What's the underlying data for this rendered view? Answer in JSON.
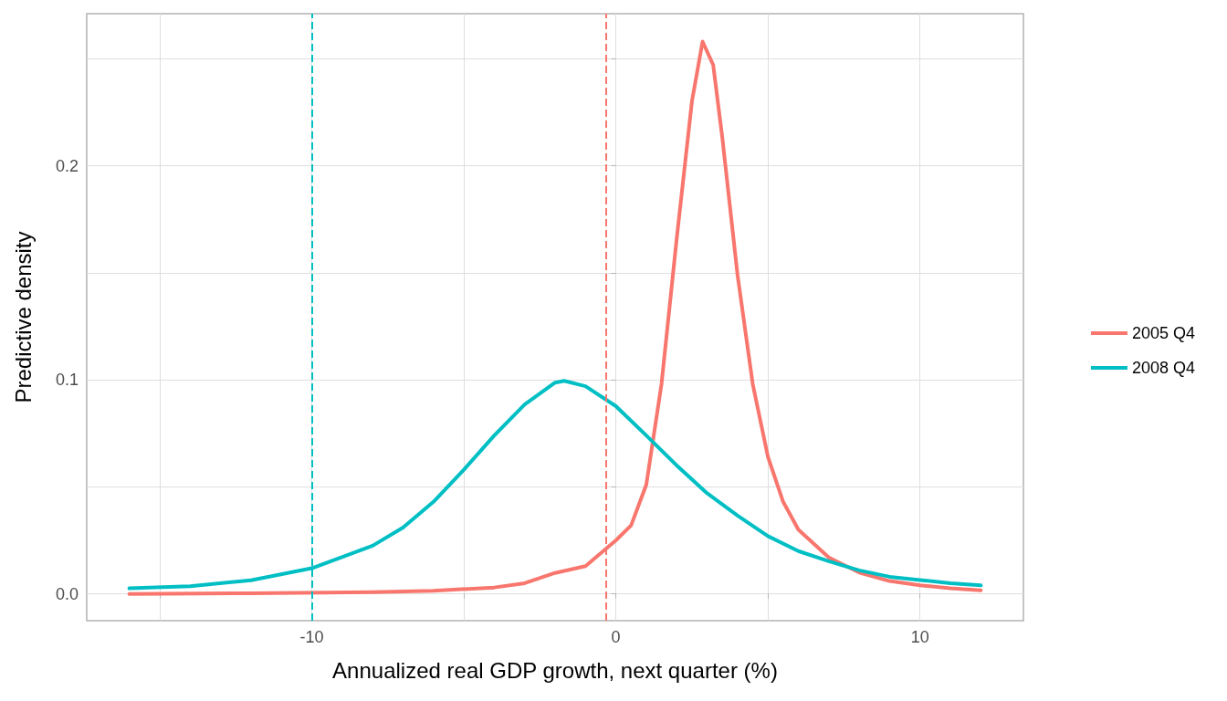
{
  "chart_data": {
    "type": "line",
    "xlabel": "Annualized real GDP growth, next quarter (%)",
    "ylabel": "Predictive density",
    "series": [
      {
        "name": "2005 Q4",
        "color": "#f8766d",
        "x": [
          -16,
          -12,
          -8,
          -6,
          -4,
          -3,
          -2,
          -1,
          0,
          0.5,
          1,
          1.5,
          2,
          2.5,
          2.85,
          3.2,
          3.5,
          4,
          4.5,
          5,
          5.5,
          6,
          7,
          8,
          9,
          10,
          11,
          12
        ],
        "values": [
          0,
          0.0003,
          0.0008,
          0.0015,
          0.003,
          0.005,
          0.0098,
          0.013,
          0.025,
          0.032,
          0.051,
          0.098,
          0.166,
          0.23,
          0.258,
          0.247,
          0.213,
          0.149,
          0.098,
          0.064,
          0.043,
          0.03,
          0.017,
          0.01,
          0.006,
          0.004,
          0.0026,
          0.0017
        ]
      },
      {
        "name": "2008 Q4",
        "color": "#00bfc4",
        "x": [
          -16,
          -14,
          -12,
          -10,
          -8,
          -7,
          -6,
          -5,
          -4,
          -3,
          -2,
          -1.7,
          -1,
          0,
          1,
          2,
          3,
          4,
          5,
          6,
          7,
          8,
          9,
          10,
          11,
          12
        ],
        "values": [
          0.0026,
          0.0036,
          0.0064,
          0.012,
          0.0225,
          0.031,
          0.043,
          0.058,
          0.074,
          0.0885,
          0.0987,
          0.0995,
          0.097,
          0.0877,
          0.074,
          0.06,
          0.047,
          0.0366,
          0.027,
          0.02,
          0.0153,
          0.011,
          0.008,
          0.0065,
          0.005,
          0.004
        ]
      }
    ],
    "xlim": [
      -17.4,
      13.4
    ],
    "ylim": [
      -0.0125,
      0.271
    ],
    "xticks": [
      {
        "value": -15,
        "label": null
      },
      -10,
      {
        "value": -5,
        "label": null
      },
      0,
      {
        "value": 5,
        "label": null
      },
      10
    ],
    "yticks": [
      {
        "value": 0,
        "label": "0.0"
      },
      {
        "value": 0.05,
        "label": null
      },
      0.1,
      {
        "value": 0.15,
        "label": null
      },
      0.2,
      {
        "value": 0.25,
        "label": null
      }
    ],
    "ref_lines": [
      {
        "axis": "x",
        "value": -0.33,
        "color": "#f8766d",
        "line_style": "dashed"
      },
      {
        "axis": "x",
        "value": -10,
        "color": "#00bfc4",
        "line_style": "dashed"
      }
    ],
    "grid": true,
    "legend": "right",
    "marker": "none",
    "line_style": "solid"
  }
}
